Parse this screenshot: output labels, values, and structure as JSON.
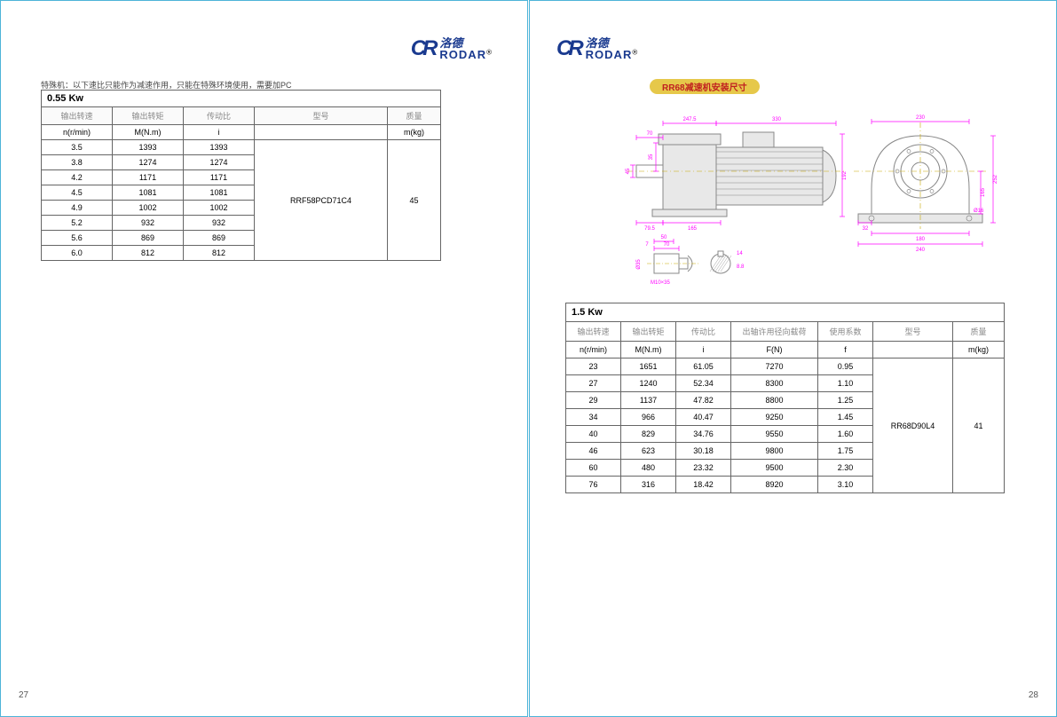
{
  "logo": {
    "cn": "洛德",
    "en": "RODAR"
  },
  "left": {
    "note": "特殊机：以下速比只能作为减速作用，只能在特殊环境使用，需要加PC",
    "kw": "0.55 Kw",
    "headers": [
      "输出转速",
      "输出转矩",
      "传动比",
      "型号",
      "质量"
    ],
    "units": [
      "n(r/min)",
      "M(N.m)",
      "i",
      "",
      "m(kg)"
    ],
    "rows": [
      [
        "3.5",
        "1393",
        "1393"
      ],
      [
        "3.8",
        "1274",
        "1274"
      ],
      [
        "4.2",
        "1171",
        "1171"
      ],
      [
        "4.5",
        "1081",
        "1081"
      ],
      [
        "4.9",
        "1002",
        "1002"
      ],
      [
        "5.2",
        "932",
        "932"
      ],
      [
        "5.6",
        "869",
        "869"
      ],
      [
        "6.0",
        "812",
        "812"
      ]
    ],
    "model": "RRF58PCD71C4",
    "mass": "45",
    "pageNum": "27"
  },
  "right": {
    "pill": "RR68减速机安装尺寸",
    "drawing": {
      "dimColor": "#ff00ff",
      "bodyColor": "#888888",
      "fillColor": "#e8e8e8",
      "yellowDash": "#c8a800",
      "dims": {
        "side_overall_top1": "247.5",
        "side_overall_top2": "330",
        "side_shaft": "70",
        "side_shaftH": "45",
        "side_boxH1": "35",
        "side_height": "192",
        "side_base1": "165",
        "side_base2": "79.5",
        "front_top": "230",
        "front_height": "252",
        "front_side": "165",
        "front_bolt": "Ø16",
        "front_base1": "180",
        "front_base2": "240",
        "front_sideoff": "32",
        "detail_top": "70",
        "detail_square": "50",
        "detail_left": "7",
        "detail_shaft": "14",
        "detail_keyh": "8.8",
        "detail_thread": "M10×35",
        "detail_dia": "Ø35"
      }
    },
    "kw": "1.5 Kw",
    "headers": [
      "输出转速",
      "输出转矩",
      "传动比",
      "出轴许用径向载荷",
      "使用系数",
      "型号",
      "质量"
    ],
    "units": [
      "n(r/min)",
      "M(N.m)",
      "i",
      "F(N)",
      "f",
      "",
      "m(kg)"
    ],
    "rows": [
      [
        "23",
        "1651",
        "61.05",
        "7270",
        "0.95"
      ],
      [
        "27",
        "1240",
        "52.34",
        "8300",
        "1.10"
      ],
      [
        "29",
        "1137",
        "47.82",
        "8800",
        "1.25"
      ],
      [
        "34",
        "966",
        "40.47",
        "9250",
        "1.45"
      ],
      [
        "40",
        "829",
        "34.76",
        "9550",
        "1.60"
      ],
      [
        "46",
        "623",
        "30.18",
        "9800",
        "1.75"
      ],
      [
        "60",
        "480",
        "23.32",
        "9500",
        "2.30"
      ],
      [
        "76",
        "316",
        "18.42",
        "8920",
        "3.10"
      ]
    ],
    "model": "RR68D90L4",
    "mass": "41",
    "pageNum": "28"
  }
}
